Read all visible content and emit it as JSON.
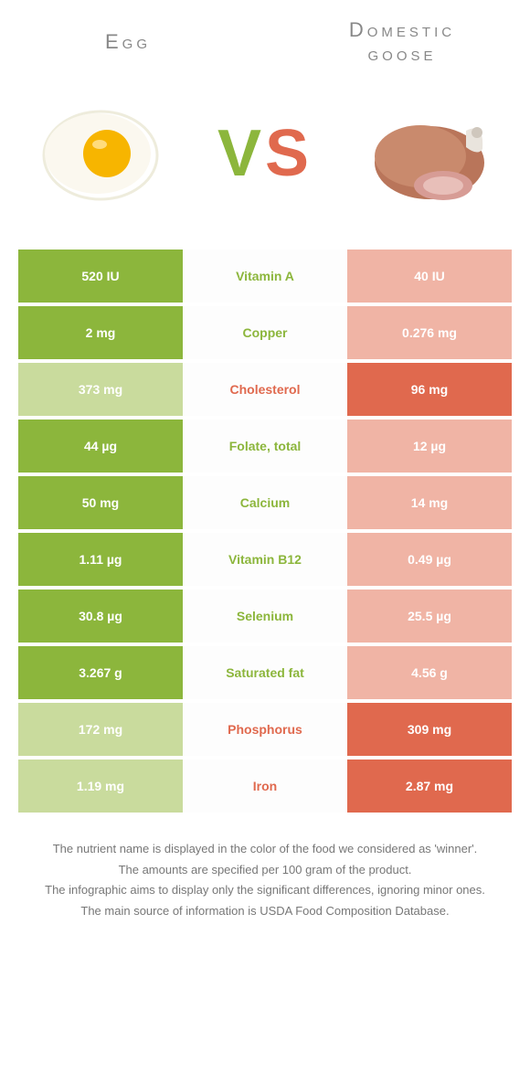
{
  "colors": {
    "green": "#8cb63c",
    "red": "#e0694e",
    "green_fade": "#c9db9d",
    "red_fade": "#f0b4a5",
    "title_grey": "#888888",
    "text_grey": "#777777",
    "bg": "#ffffff"
  },
  "header": {
    "left_title": "Egg",
    "right_title": "Domestic goose",
    "vs_v": "V",
    "vs_s": "S"
  },
  "rows": [
    {
      "left": "520 IU",
      "label": "Vitamin A",
      "right": "40 IU",
      "winner": "left"
    },
    {
      "left": "2 mg",
      "label": "Copper",
      "right": "0.276 mg",
      "winner": "left"
    },
    {
      "left": "373 mg",
      "label": "Cholesterol",
      "right": "96 mg",
      "winner": "right"
    },
    {
      "left": "44 µg",
      "label": "Folate, total",
      "right": "12 µg",
      "winner": "left"
    },
    {
      "left": "50 mg",
      "label": "Calcium",
      "right": "14 mg",
      "winner": "left"
    },
    {
      "left": "1.11 µg",
      "label": "Vitamin B12",
      "right": "0.49 µg",
      "winner": "left"
    },
    {
      "left": "30.8 µg",
      "label": "Selenium",
      "right": "25.5 µg",
      "winner": "left"
    },
    {
      "left": "3.267 g",
      "label": "Saturated fat",
      "right": "4.56 g",
      "winner": "left"
    },
    {
      "left": "172 mg",
      "label": "Phosphorus",
      "right": "309 mg",
      "winner": "right"
    },
    {
      "left": "1.19 mg",
      "label": "Iron",
      "right": "2.87 mg",
      "winner": "right"
    }
  ],
  "footer": {
    "l1": "The nutrient name is displayed in the color of the food we considered as 'winner'.",
    "l2": "The amounts are specified per 100 gram of the product.",
    "l3": "The infographic aims to display only the significant differences, ignoring minor ones.",
    "l4": "The main source of information is USDA Food Composition Database."
  }
}
